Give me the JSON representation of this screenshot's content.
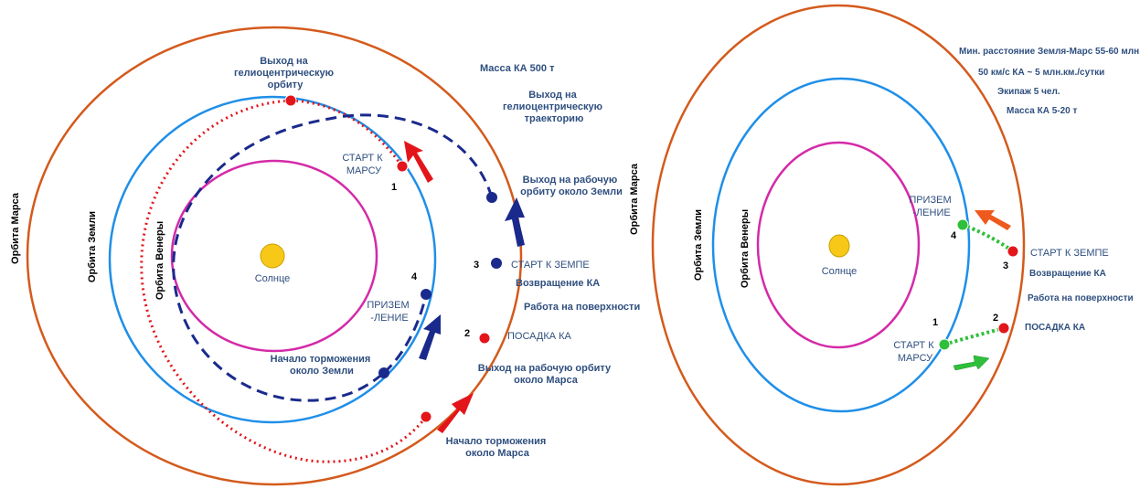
{
  "colors": {
    "mars_orbit": "#d45a1c",
    "earth_orbit": "#1f8fe8",
    "venus_orbit": "#d42aa8",
    "sun": "#f7c817",
    "transfer_red": "#e3151a",
    "transfer_blue": "#1a2a8c",
    "transfer_green": "#2fbf3a",
    "text": "#2f4f7f"
  },
  "left": {
    "orbits": {
      "mars": "Орбита Марса",
      "earth": "Орбита Земли",
      "venus": "Орбита Венеры"
    },
    "sun_label": "Солнце",
    "heliocentric_orbit": [
      "Выход на",
      "гелиоцентрическую",
      "орбиту"
    ],
    "mass": "Масса КА  500 т",
    "heliocentric_trajectory": [
      "Выход на",
      "гелиоцентрическую",
      "траекторию"
    ],
    "start_mars": [
      "СТАРТ  К",
      "МАРСУ"
    ],
    "working_orbit_earth": [
      "Выход на рабочую",
      "орбиту около  Земли"
    ],
    "start_earth": "СТАРТ К ЗЕМПЕ",
    "return_ka": "Возвращение  КА",
    "surface_work": "Работа на поверхности",
    "landing_ka": "ПОСАДКА  КА",
    "landing": [
      "ПРИЗЕМ",
      "-ЛЕНИЕ"
    ],
    "braking_earth": [
      "Начало торможения",
      "около Земли"
    ],
    "working_orbit_mars": [
      "Выход на рабочую орбиту",
      "около  Марса"
    ],
    "braking_mars": [
      "Начало торможения",
      "около  Марса"
    ],
    "numbers": [
      "1",
      "2",
      "3",
      "4"
    ]
  },
  "right": {
    "orbits": {
      "mars": "Орбита Марса",
      "earth": "Орбита Земли",
      "venus": "Орбита Венеры"
    },
    "sun_label": "Солнце",
    "min_distance": "Мин. расстояние Земля-Марс 55-60 млн.км",
    "speed": "50 км/с  КА ~ 5 млн.км./сутки",
    "crew": "Экипаж 5 чел.",
    "mass": "Масса КА  5-20 т",
    "landing": [
      "ПРИЗЕМ",
      "-ЛЕНИЕ"
    ],
    "start_earth": "СТАРТ К ЗЕМПЕ",
    "return_ka": "Возвращение  КА",
    "surface_work": "Работа на поверхности",
    "landing_ka": "ПОСАДКА  КА",
    "start_mars": [
      "СТАРТ  К",
      "МАРСУ"
    ],
    "numbers": [
      "1",
      "2",
      "3",
      "4"
    ]
  }
}
